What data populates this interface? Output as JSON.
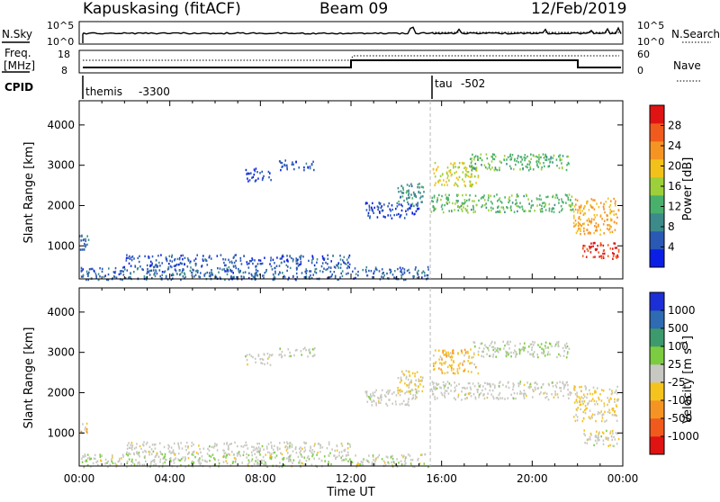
{
  "header": {
    "station": "Kapuskasing (fitACF)",
    "beam": "Beam 09",
    "date": "12/Feb/2019"
  },
  "noise_panel": {
    "left_label": "N.Sky",
    "right_label": "N.Search",
    "left_ticks": [
      "10^5",
      "10^0"
    ],
    "right_ticks": [
      "10^5",
      "10^0"
    ]
  },
  "freq_panel": {
    "left_label_line1": "Freq.",
    "left_label_line2": "[MHz]",
    "right_label": "Nave",
    "left_ticks": [
      "18",
      "8"
    ],
    "right_ticks": [
      "60",
      "0"
    ]
  },
  "cpid": {
    "label": "CPID",
    "segments": [
      {
        "name": "themis",
        "id": "-3300",
        "start_hour": 0
      },
      {
        "name": "tau",
        "id": "-502",
        "start_hour": 15.5
      }
    ]
  },
  "time_axis": {
    "xlabel": "Time UT",
    "ticks": [
      "00:00",
      "04:00",
      "08:00",
      "12:00",
      "16:00",
      "20:00",
      "00:00"
    ]
  },
  "colors": {
    "power": [
      "#0a1ee6",
      "#2a58b5",
      "#3d8a8a",
      "#49b06b",
      "#9ccf3a",
      "#f2c21a",
      "#f59423",
      "#f05a1c",
      "#e01313"
    ],
    "velocity": [
      "#1c2fd6",
      "#2e6bb2",
      "#3c9a6c",
      "#7ccc42",
      "#c8c8c2",
      "#f5c31e",
      "#f59423",
      "#f05a1c",
      "#e01313"
    ]
  },
  "chart_data": [
    {
      "type": "heatmap",
      "parameter": "power",
      "ylabel": "Slant Range [km]",
      "xlabel": "Time UT",
      "y_ticks": [
        1000,
        2000,
        3000,
        4000
      ],
      "ylim": [
        180,
        4600
      ],
      "xlim_hours": [
        0,
        24
      ],
      "colorbar": {
        "label": "Power [dB]",
        "range": [
          0,
          32
        ],
        "ticks": [
          4,
          8,
          12,
          16,
          20,
          24,
          28
        ]
      },
      "regions": [
        {
          "t": [
            0.0,
            0.4
          ],
          "r": [
            900,
            1300
          ],
          "value": 6
        },
        {
          "t": [
            0.0,
            15.4
          ],
          "r": [
            180,
            500
          ],
          "value": 6
        },
        {
          "t": [
            2.0,
            12.0
          ],
          "r": [
            500,
            800
          ],
          "value": 5
        },
        {
          "t": [
            7.3,
            8.5
          ],
          "r": [
            2600,
            2950
          ],
          "value": 4
        },
        {
          "t": [
            8.8,
            10.4
          ],
          "r": [
            2900,
            3150
          ],
          "value": 5
        },
        {
          "t": [
            12.6,
            15.0
          ],
          "r": [
            1700,
            2100
          ],
          "value": 4
        },
        {
          "t": [
            14.0,
            15.2
          ],
          "r": [
            2000,
            2600
          ],
          "value": 9
        },
        {
          "t": [
            15.6,
            17.6
          ],
          "r": [
            2500,
            3100
          ],
          "value": 18
        },
        {
          "t": [
            17.2,
            21.6
          ],
          "r": [
            2900,
            3300
          ],
          "value": 13
        },
        {
          "t": [
            15.5,
            21.8
          ],
          "r": [
            1850,
            2300
          ],
          "value": 13
        },
        {
          "t": [
            21.8,
            23.8
          ],
          "r": [
            1300,
            2200
          ],
          "value": 22
        },
        {
          "t": [
            22.2,
            23.8
          ],
          "r": [
            700,
            1100
          ],
          "value": 29
        }
      ]
    },
    {
      "type": "heatmap",
      "parameter": "velocity",
      "ylabel": "Slant Range [km]",
      "xlabel": "Time UT",
      "y_ticks": [
        1000,
        2000,
        3000,
        4000
      ],
      "ylim": [
        180,
        4600
      ],
      "xlim_hours": [
        0,
        24
      ],
      "colorbar": {
        "label": "Velocity [m s",
        "label_sup": "-1",
        "label_end": "]",
        "range": [
          -1200,
          1200
        ],
        "tick_labels": [
          "1000",
          "500",
          "100",
          "25",
          "-25",
          "-100",
          "-500",
          "-1000"
        ]
      },
      "regions": [
        {
          "t": [
            0.0,
            0.4
          ],
          "r": [
            1000,
            1300
          ],
          "value": -300
        },
        {
          "t": [
            0.0,
            15.4
          ],
          "r": [
            180,
            500
          ],
          "value": 60
        },
        {
          "t": [
            2.0,
            12.0
          ],
          "r": [
            500,
            800
          ],
          "value": 10
        },
        {
          "t": [
            7.3,
            8.5
          ],
          "r": [
            2700,
            3000
          ],
          "value": 0
        },
        {
          "t": [
            8.8,
            10.4
          ],
          "r": [
            2900,
            3150
          ],
          "value": 0
        },
        {
          "t": [
            12.6,
            15.0
          ],
          "r": [
            1700,
            2100
          ],
          "value": 0
        },
        {
          "t": [
            14.0,
            15.2
          ],
          "r": [
            2000,
            2600
          ],
          "value": -150
        },
        {
          "t": [
            15.6,
            17.6
          ],
          "r": [
            2500,
            3100
          ],
          "value": -300
        },
        {
          "t": [
            17.2,
            21.6
          ],
          "r": [
            2900,
            3300
          ],
          "value": 80
        },
        {
          "t": [
            15.5,
            21.8
          ],
          "r": [
            1850,
            2300
          ],
          "value": 0
        },
        {
          "t": [
            21.8,
            23.8
          ],
          "r": [
            1300,
            2200
          ],
          "value": -150
        },
        {
          "t": [
            22.2,
            23.8
          ],
          "r": [
            700,
            1100
          ],
          "value": -60
        }
      ]
    }
  ]
}
